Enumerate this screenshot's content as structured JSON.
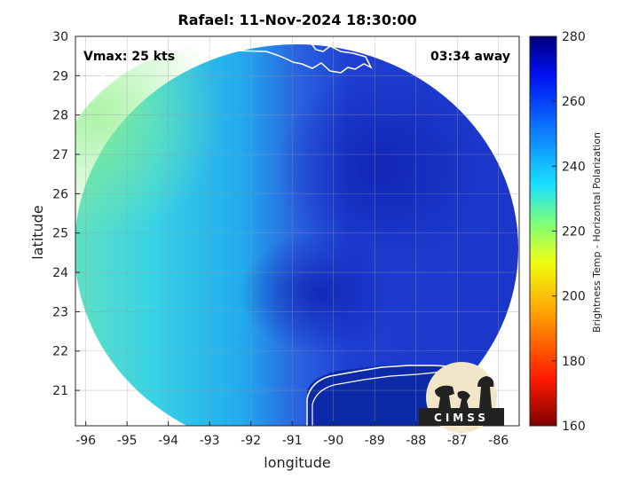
{
  "title": "Rafael: 11-Nov-2024 18:30:00",
  "xlabel": "longitude",
  "ylabel": "latitude",
  "vmax_text": "Vmax: 25 kts",
  "time_away_text": "03:34 away",
  "colorbar": {
    "label": "Brightness Temp - Horizontal Polarization",
    "ticks": [
      "280",
      "260",
      "240",
      "220",
      "200",
      "180",
      "160"
    ],
    "min": 160,
    "max": 280
  },
  "logo_text": "CIMSS",
  "chart_data": {
    "type": "heatmap",
    "x_ticks": [
      "-96",
      "-95",
      "-94",
      "-93",
      "-92",
      "-91",
      "-90",
      "-89",
      "-88",
      "-87",
      "-86"
    ],
    "y_ticks": [
      "30",
      "29",
      "28",
      "27",
      "26",
      "25",
      "24",
      "23",
      "22",
      "21"
    ],
    "xlim": [
      -96.25,
      -85.5
    ],
    "ylim": [
      20.1,
      30
    ],
    "grid": true,
    "colors": {
      "coast": "#ffffff",
      "swath_west": "#3fd4d8",
      "swath_east": "#1f3fd0",
      "outside": "#ffffff"
    }
  }
}
